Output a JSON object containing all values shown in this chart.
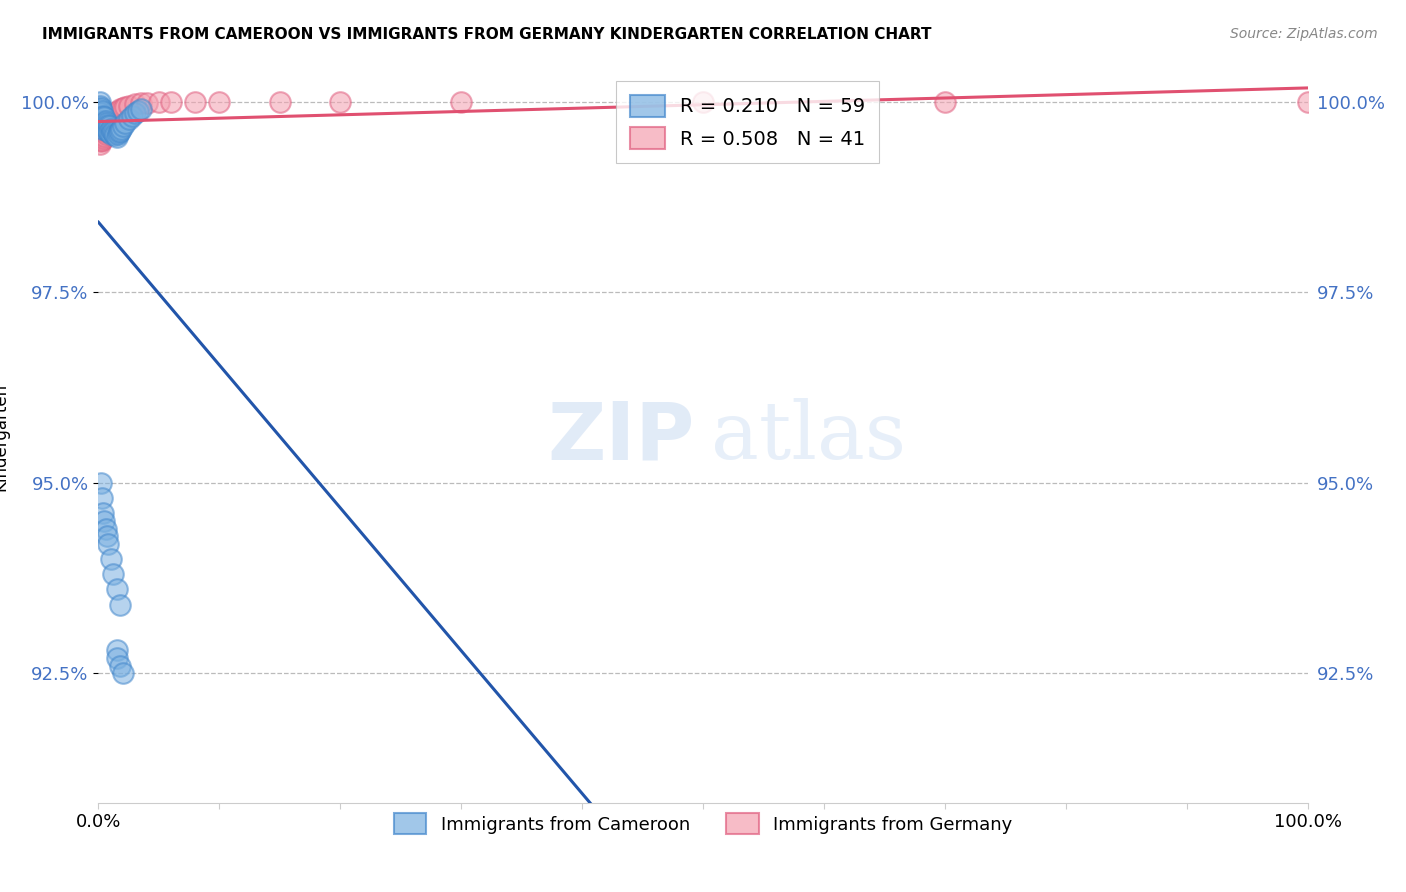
{
  "title": "IMMIGRANTS FROM CAMEROON VS IMMIGRANTS FROM GERMANY KINDERGARTEN CORRELATION CHART",
  "source_text": "Source: ZipAtlas.com",
  "ylabel": "Kindergarten",
  "xlim": [
    0.0,
    1.0
  ],
  "ylim": [
    0.908,
    1.004
  ],
  "yticks": [
    0.925,
    0.95,
    0.975,
    1.0
  ],
  "ytick_labels": [
    "92.5%",
    "95.0%",
    "97.5%",
    "100.0%"
  ],
  "xticks": [
    0.0,
    0.1,
    0.2,
    0.3,
    0.4,
    0.5,
    0.6,
    0.7,
    0.8,
    0.9,
    1.0
  ],
  "xtick_labels": [
    "0.0%",
    "",
    "",
    "",
    "",
    "",
    "",
    "",
    "",
    "",
    "100.0%"
  ],
  "blue_R": 0.21,
  "blue_N": 59,
  "pink_R": 0.508,
  "pink_N": 41,
  "blue_color": "#7AB0E0",
  "pink_color": "#F4A0B0",
  "blue_edge_color": "#4488CC",
  "pink_edge_color": "#E06080",
  "blue_line_color": "#2255AA",
  "pink_line_color": "#E05070",
  "blue_scatter_x": [
    0.001,
    0.001,
    0.001,
    0.001,
    0.002,
    0.002,
    0.002,
    0.002,
    0.003,
    0.003,
    0.003,
    0.003,
    0.004,
    0.004,
    0.004,
    0.005,
    0.005,
    0.005,
    0.006,
    0.006,
    0.007,
    0.007,
    0.008,
    0.008,
    0.009,
    0.009,
    0.01,
    0.01,
    0.011,
    0.012,
    0.013,
    0.014,
    0.015,
    0.016,
    0.017,
    0.018,
    0.019,
    0.02,
    0.022,
    0.025,
    0.028,
    0.03,
    0.033,
    0.035,
    0.002,
    0.003,
    0.004,
    0.005,
    0.006,
    0.007,
    0.008,
    0.01,
    0.012,
    0.015,
    0.018,
    0.015,
    0.015,
    0.018,
    0.02
  ],
  "blue_scatter_y": [
    1.0,
    0.9995,
    0.999,
    0.9985,
    0.9992,
    0.9985,
    0.9978,
    0.997,
    0.9988,
    0.998,
    0.9972,
    0.9965,
    0.9982,
    0.9975,
    0.9968,
    0.998,
    0.9972,
    0.9965,
    0.9975,
    0.9968,
    0.9972,
    0.9965,
    0.997,
    0.9962,
    0.9968,
    0.996,
    0.9965,
    0.9958,
    0.9962,
    0.996,
    0.9958,
    0.9956,
    0.9954,
    0.9958,
    0.996,
    0.9962,
    0.9964,
    0.9968,
    0.9972,
    0.9978,
    0.9982,
    0.9985,
    0.9988,
    0.999,
    0.95,
    0.948,
    0.946,
    0.945,
    0.944,
    0.943,
    0.942,
    0.94,
    0.938,
    0.936,
    0.934,
    0.928,
    0.927,
    0.926,
    0.925
  ],
  "pink_scatter_x": [
    0.001,
    0.001,
    0.002,
    0.002,
    0.003,
    0.003,
    0.004,
    0.004,
    0.005,
    0.005,
    0.006,
    0.006,
    0.007,
    0.007,
    0.008,
    0.008,
    0.009,
    0.01,
    0.011,
    0.012,
    0.013,
    0.014,
    0.015,
    0.016,
    0.018,
    0.02,
    0.022,
    0.025,
    0.03,
    0.035,
    0.04,
    0.05,
    0.06,
    0.08,
    0.1,
    0.15,
    0.2,
    0.3,
    0.5,
    0.7,
    1.0
  ],
  "pink_scatter_y": [
    0.995,
    0.9945,
    0.9952,
    0.9948,
    0.9955,
    0.995,
    0.9958,
    0.9952,
    0.996,
    0.9955,
    0.9962,
    0.9958,
    0.9965,
    0.996,
    0.9968,
    0.9962,
    0.997,
    0.9972,
    0.9975,
    0.9978,
    0.998,
    0.9982,
    0.9985,
    0.9988,
    0.999,
    0.9992,
    0.9993,
    0.9995,
    0.9997,
    0.9998,
    0.9999,
    1.0,
    1.0,
    1.0,
    1.0,
    1.0,
    1.0,
    1.0,
    1.0,
    1.0,
    1.0
  ]
}
